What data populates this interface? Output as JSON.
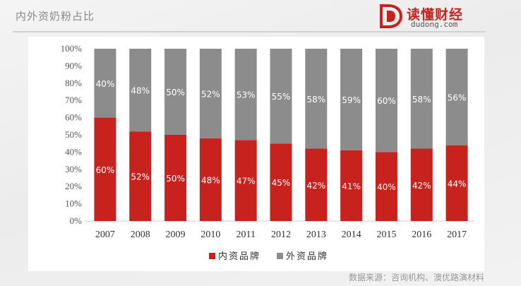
{
  "header": {
    "title": "内外资奶粉占比",
    "logo_name": "读懂财经",
    "logo_domain": "dudong.com",
    "brand_color": "#c8221f"
  },
  "chart_data": {
    "type": "bar",
    "stacked": true,
    "categories": [
      "2007",
      "2008",
      "2009",
      "2010",
      "2011",
      "2012",
      "2013",
      "2014",
      "2015",
      "2016",
      "2017"
    ],
    "series": [
      {
        "name": "内资品牌",
        "color": "#c8221f",
        "values": [
          60,
          52,
          50,
          48,
          47,
          45,
          42,
          41,
          40,
          42,
          44
        ]
      },
      {
        "name": "外资品牌",
        "color": "#8c8c8c",
        "values": [
          40,
          48,
          50,
          52,
          53,
          55,
          58,
          59,
          60,
          58,
          56
        ]
      }
    ],
    "ylim": [
      0,
      100
    ],
    "yticks": [
      "0%",
      "10%",
      "20%",
      "30%",
      "40%",
      "50%",
      "60%",
      "70%",
      "80%",
      "90%",
      "100%"
    ],
    "legend_position": "bottom-center",
    "grid": false
  },
  "footer": {
    "source": "数据来源：咨询机构、澳优路演材料"
  }
}
